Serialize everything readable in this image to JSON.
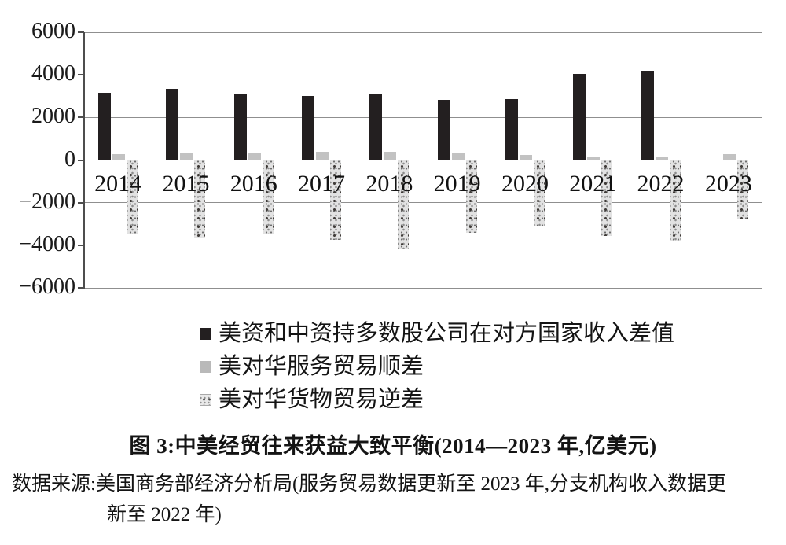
{
  "figure": {
    "title": "图 3:中美经贸往来获益大致平衡(2014—2023 年,亿美元)",
    "source_line1": "数据来源:美国商务部经济分析局(服务贸易数据更新至 2023 年,分支机构收入数据更",
    "source_line2": "新至 2022 年)"
  },
  "chart_data": {
    "type": "bar",
    "unit": "亿美元",
    "categories": [
      "2014",
      "2015",
      "2016",
      "2017",
      "2018",
      "2019",
      "2020",
      "2021",
      "2022",
      "2023"
    ],
    "series": [
      {
        "name": "美资和中资持多数股公司在对方国家收入差值",
        "marker": "solid-black",
        "color": "#231f20",
        "values": [
          3160,
          3340,
          3090,
          3000,
          3120,
          2840,
          2860,
          4060,
          4180,
          null
        ]
      },
      {
        "name": "美对华服务贸易顺差",
        "marker": "solid-gray",
        "color": "#c2c2c2",
        "values": [
          260,
          310,
          360,
          385,
          390,
          360,
          230,
          170,
          140,
          265
        ]
      },
      {
        "name": "美对华货物贸易逆差",
        "marker": "speckled-gray",
        "color": "#e2e2e2",
        "values": [
          -3450,
          -3670,
          -3470,
          -3750,
          -4180,
          -3420,
          -3100,
          -3550,
          -3830,
          -2790
        ]
      }
    ],
    "ylim": [
      -6000,
      6000
    ],
    "yticks": [
      {
        "value": 6000,
        "label": "6000"
      },
      {
        "value": 4000,
        "label": "4000"
      },
      {
        "value": 2000,
        "label": "2000"
      },
      {
        "value": 0,
        "label": "0"
      },
      {
        "value": -2000,
        "label": "−2000"
      },
      {
        "value": -4000,
        "label": "−4000"
      },
      {
        "value": -6000,
        "label": "−6000"
      }
    ],
    "grid": true,
    "legend_position": "below-chart-left"
  }
}
